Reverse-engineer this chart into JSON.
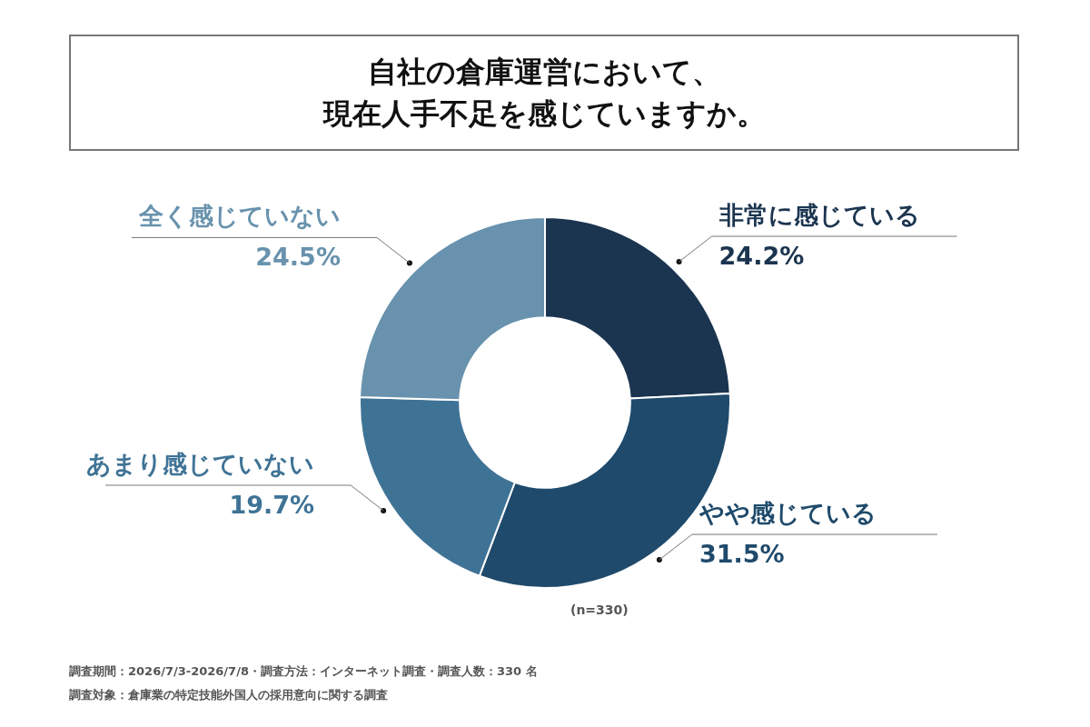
{
  "chart_data": {
    "type": "donut",
    "title": "自社の倉庫運営において、現在人手不足を感じていますか。",
    "categories": [
      "非常に感じている",
      "やや感じている",
      "あまり感じていない",
      "全く感じていない"
    ],
    "values": [
      24.2,
      31.5,
      19.7,
      24.5
    ],
    "colors": [
      "#1b3550",
      "#1f4a6b",
      "#3f7396",
      "#6892ad"
    ],
    "value_labels": [
      "24.2%",
      "31.5%",
      "19.7%",
      "24.5%"
    ],
    "annotations": [
      "(n=330)",
      "調査期間：2026/7/3-2026/7/8・調査方法：インターネット調査・調査人数：330 名",
      "調査対象：倉庫業の特定技能外国人の採用意向に関する調査"
    ]
  }
}
